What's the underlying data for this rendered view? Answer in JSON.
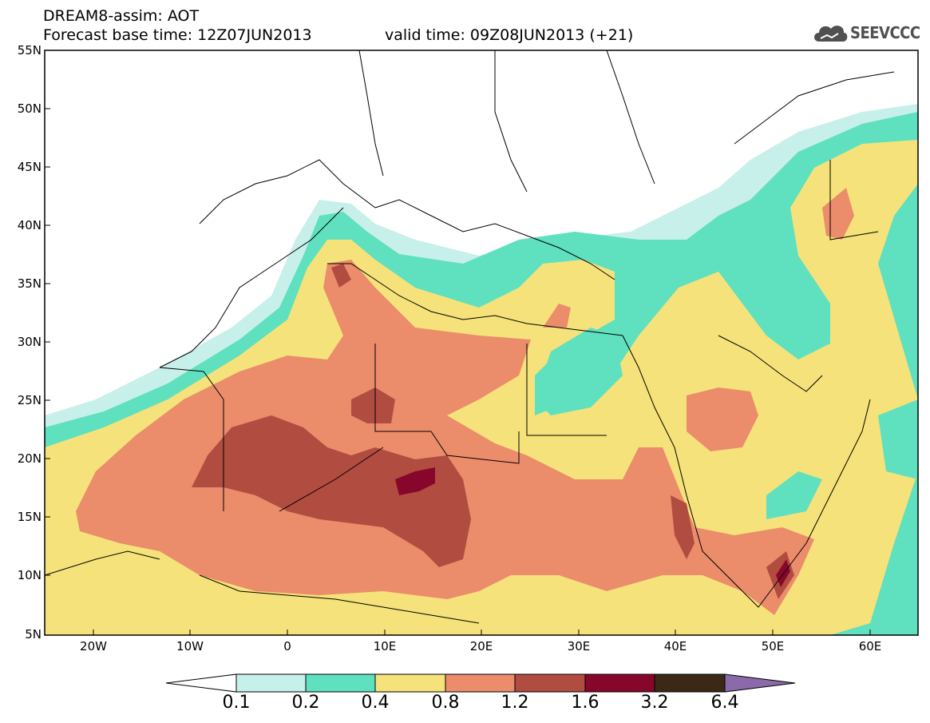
{
  "header": {
    "model_line": "DREAM8-assim: AOT",
    "base_time": "Forecast base time: 12Z07JUN2013",
    "valid_time": "valid time: 09Z08JUN2013 (+21)",
    "logo": "SEEVCCC"
  },
  "axes": {
    "lat_labels": [
      "55N",
      "50N",
      "45N",
      "40N",
      "35N",
      "30N",
      "25N",
      "20N",
      "15N",
      "10N",
      "5N"
    ],
    "lon_labels": [
      "20W",
      "10W",
      "0",
      "10E",
      "20E",
      "30E",
      "40E",
      "50E",
      "60E"
    ]
  },
  "colorbar": {
    "labels": [
      "0.1",
      "0.2",
      "0.4",
      "0.8",
      "1.2",
      "1.6",
      "3.2",
      "6.4"
    ],
    "colors": [
      "#c7f0ea",
      "#5fe0bf",
      "#f5e27a",
      "#eb8c6b",
      "#b14c40",
      "#87072c",
      "#3c2816",
      "#8a6aa8"
    ]
  },
  "field_colors": {
    "ocean": "#ffffff",
    "band_0_1": "#c7f0ea",
    "band_0_2": "#5fe0bf",
    "band_0_4": "#f5e27a",
    "band_0_8": "#eb8c6b",
    "band_1_2": "#b14c40",
    "band_1_6": "#87072c"
  }
}
